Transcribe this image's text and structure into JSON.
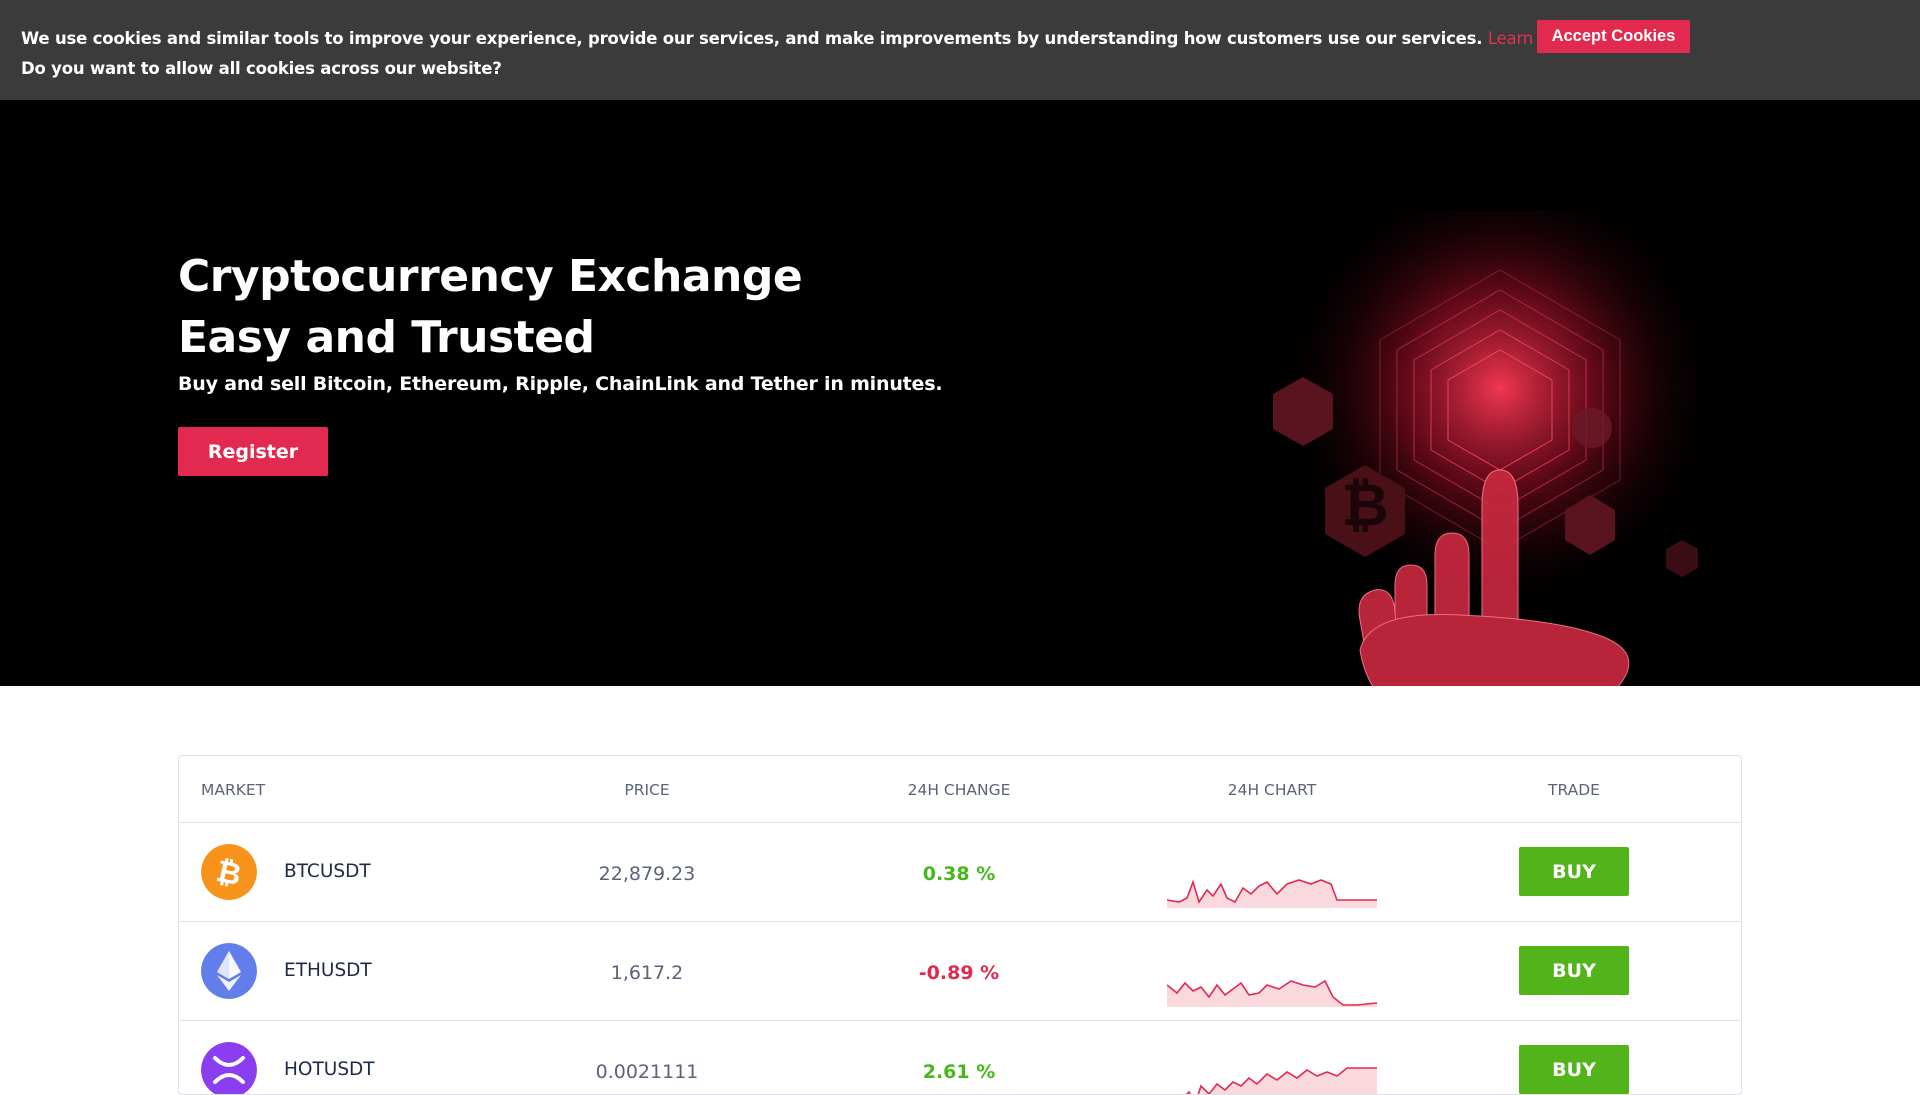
{
  "cookie": {
    "message": "We use cookies and similar tools to improve your experience, provide our services, and make improvements by understanding how customers use our services.",
    "learn_link": "Learn about cookies.",
    "question": "Do you want to allow all cookies across our website?",
    "accept_label": "Accept Cookies"
  },
  "hero": {
    "title_line1": "Cryptocurrency Exchange",
    "title_line2": "Easy and Trusted",
    "subtitle": "Buy and sell Bitcoin, Ethereum, Ripple, ChainLink and Tether in minutes.",
    "register_label": "Register"
  },
  "table": {
    "headers": {
      "market": "MARKET",
      "price": "PRICE",
      "change": "24H CHANGE",
      "chart": "24H CHART",
      "trade": "TRADE"
    },
    "rows": [
      {
        "symbol": "BTCUSDT",
        "price": "22,879.23",
        "change": "0.38 %",
        "trend": "up",
        "buy_label": "BUY",
        "icon": "bitcoin-icon",
        "color": "#f7931a"
      },
      {
        "symbol": "ETHUSDT",
        "price": "1,617.2",
        "change": "-0.89 %",
        "trend": "down",
        "buy_label": "BUY",
        "icon": "ethereum-icon",
        "color": "#627eea"
      },
      {
        "symbol": "HOTUSDT",
        "price": "0.0021111",
        "change": "2.61 %",
        "trend": "up",
        "buy_label": "BUY",
        "icon": "holo-icon",
        "color": "#8b3df0"
      }
    ]
  },
  "colors": {
    "accent": "#e2294f",
    "buy": "#52b31b",
    "up": "#46b81a",
    "down": "#e2294f"
  }
}
